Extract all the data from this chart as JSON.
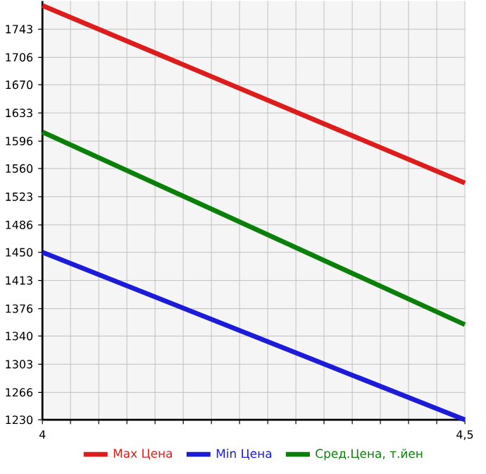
{
  "chart_data": {
    "type": "line",
    "x": [
      4,
      4.5
    ],
    "xlim": [
      4,
      4.5
    ],
    "xticks": [
      4,
      {
        "value": 4.0333,
        "label": null
      },
      {
        "value": 4.0667,
        "label": null
      },
      {
        "value": 4.1,
        "label": null
      },
      {
        "value": 4.1333,
        "label": null
      },
      {
        "value": 4.1667,
        "label": null
      },
      {
        "value": 4.2,
        "label": null
      },
      {
        "value": 4.2333,
        "label": null
      },
      {
        "value": 4.2667,
        "label": null
      },
      {
        "value": 4.3,
        "label": null
      },
      {
        "value": 4.3333,
        "label": null
      },
      {
        "value": 4.3667,
        "label": null
      },
      {
        "value": 4.4,
        "label": null
      },
      {
        "value": 4.4333,
        "label": null
      },
      {
        "value": 4.4667,
        "label": null
      },
      {
        "value": 4.5,
        "label": "4,5"
      }
    ],
    "ylim": [
      1230,
      1780
    ],
    "yticks": [
      1230,
      1266,
      1303,
      1340,
      1376,
      1413,
      1450,
      1486,
      1523,
      1560,
      1596,
      1633,
      1670,
      1706,
      1743
    ],
    "series": [
      {
        "name": "Max Цена",
        "color": "#dd1c1c",
        "values": [
          1774,
          1541
        ]
      },
      {
        "name": "Min Цена",
        "color": "#1c1cd8",
        "values": [
          1450,
          1230
        ]
      },
      {
        "name": "Сред.Цена, т.йен",
        "color": "#0a800a",
        "values": [
          1608,
          1355
        ]
      }
    ],
    "grid": true,
    "legend": "bottom",
    "marker": "none",
    "line_style": "solid"
  }
}
